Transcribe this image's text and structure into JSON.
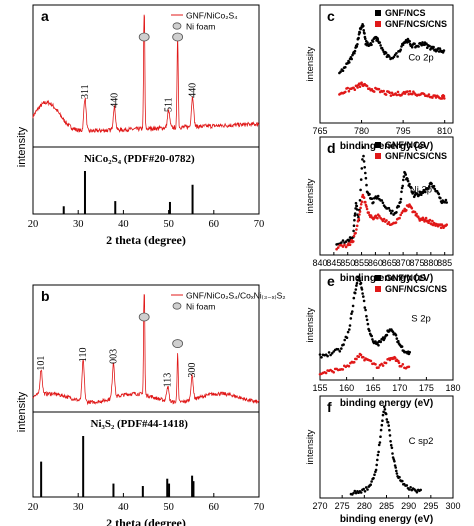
{
  "colors": {
    "red": "#e01818",
    "black": "#000000",
    "marker_fill": "#cfcfcf"
  },
  "chart_data": [
    {
      "id": "a",
      "panel_label": "a",
      "type": "line",
      "xlabel": "2 theta (degree)",
      "ylabel": "intensity",
      "xlim": [
        20,
        70
      ],
      "xticks": [
        20,
        30,
        40,
        50,
        60,
        70
      ],
      "legend": [
        {
          "name": "GNF/NiCo₂S₄",
          "kind": "line",
          "color": "#e01818"
        },
        {
          "name": "Ni foam",
          "kind": "marker",
          "color": "#cfcfcf"
        }
      ],
      "legend_position": "top-right",
      "peaks": [
        {
          "x": 31.5,
          "label": "311"
        },
        {
          "x": 38.0,
          "label": "440"
        },
        {
          "x": 44.6,
          "label": "",
          "ni_foam": true
        },
        {
          "x": 50.0,
          "label": "511"
        },
        {
          "x": 52.0,
          "label": "",
          "ni_foam": true
        },
        {
          "x": 55.3,
          "label": "440"
        }
      ],
      "reference": {
        "label": "NiCo₂S₄ (PDF#20-0782)",
        "sticks": [
          {
            "x": 26.8,
            "h": 0.18
          },
          {
            "x": 31.5,
            "h": 1.0
          },
          {
            "x": 38.2,
            "h": 0.3
          },
          {
            "x": 50.3,
            "h": 0.28
          },
          {
            "x": 55.3,
            "h": 0.68
          }
        ]
      }
    },
    {
      "id": "b",
      "panel_label": "b",
      "type": "line",
      "xlabel": "2 theta (degree)",
      "ylabel": "intensity",
      "xlim": [
        20,
        70
      ],
      "xticks": [
        20,
        30,
        40,
        50,
        60,
        70
      ],
      "legend": [
        {
          "name": "GNF/NiCo₂S₄/CoₓNi₍₃₋ₓ₎S₂",
          "kind": "line",
          "color": "#e01818"
        },
        {
          "name": "Ni foam",
          "kind": "marker",
          "color": "#cfcfcf"
        }
      ],
      "legend_position": "top-right",
      "peaks": [
        {
          "x": 21.8,
          "label": "101"
        },
        {
          "x": 31.1,
          "label": "110"
        },
        {
          "x": 37.8,
          "label": "003"
        },
        {
          "x": 44.6,
          "label": "",
          "ni_foam": true
        },
        {
          "x": 49.8,
          "label": "113"
        },
        {
          "x": 52.0,
          "label": "",
          "ni_foam": true
        },
        {
          "x": 55.2,
          "label": "300"
        }
      ],
      "reference": {
        "label": "Ni₃S₂ (PDF#44-1418)",
        "sticks": [
          {
            "x": 21.8,
            "h": 0.58
          },
          {
            "x": 31.1,
            "h": 1.0
          },
          {
            "x": 37.8,
            "h": 0.22
          },
          {
            "x": 44.3,
            "h": 0.18
          },
          {
            "x": 49.7,
            "h": 0.3
          },
          {
            "x": 50.1,
            "h": 0.22
          },
          {
            "x": 55.2,
            "h": 0.35
          },
          {
            "x": 55.5,
            "h": 0.26
          }
        ]
      }
    },
    {
      "id": "c",
      "panel_label": "c",
      "type": "scatter",
      "element_label": "Co 2p",
      "xlabel": "binding energy (eV)",
      "ylabel": "intensity",
      "xlim": [
        765,
        813
      ],
      "xticks": [
        765,
        780,
        795,
        810
      ],
      "legend": [
        {
          "name": "GNF/NCS",
          "color": "#000000"
        },
        {
          "name": "GNF/NCS/CNS",
          "color": "#e01818"
        }
      ],
      "series": [
        {
          "name": "GNF/NCS",
          "color": "#000000",
          "x": [
            772,
            775,
            777,
            778.5,
            779.5,
            780.5,
            781.5,
            783,
            785,
            786,
            788,
            790,
            793,
            795,
            796.5,
            798,
            800,
            802,
            804,
            806,
            808,
            810
          ],
          "y": [
            0.42,
            0.5,
            0.58,
            0.68,
            0.8,
            0.83,
            0.68,
            0.66,
            0.72,
            0.7,
            0.6,
            0.55,
            0.58,
            0.68,
            0.7,
            0.66,
            0.65,
            0.68,
            0.65,
            0.63,
            0.62,
            0.6
          ]
        },
        {
          "name": "GNF/NCS/CNS",
          "color": "#e01818",
          "x": [
            772,
            775,
            778,
            780,
            782,
            785,
            788,
            791,
            794,
            797,
            800,
            803,
            806,
            809,
            810
          ],
          "y": [
            0.25,
            0.28,
            0.3,
            0.33,
            0.3,
            0.28,
            0.26,
            0.24,
            0.25,
            0.26,
            0.25,
            0.24,
            0.23,
            0.22,
            0.22
          ]
        }
      ]
    },
    {
      "id": "d",
      "panel_label": "d",
      "type": "scatter",
      "element_label": "Ni 2p",
      "xlabel": "binding energy (eV)",
      "ylabel": "intensity",
      "xlim": [
        840,
        888
      ],
      "xticks": [
        840,
        845,
        850,
        855,
        860,
        865,
        870,
        875,
        880,
        885
      ],
      "legend": [
        {
          "name": "GNF/NCS",
          "color": "#000000"
        },
        {
          "name": "GNF/NCS/CNS",
          "color": "#e01818"
        }
      ],
      "series": [
        {
          "name": "GNF/NCS",
          "color": "#000000",
          "x": [
            846,
            850,
            852,
            853,
            854,
            855.5,
            857,
            859,
            861,
            864,
            867,
            869,
            870.5,
            872,
            874,
            876,
            878,
            880,
            882,
            884,
            886
          ],
          "y": [
            0.1,
            0.12,
            0.16,
            0.45,
            0.28,
            0.9,
            0.55,
            0.45,
            0.5,
            0.4,
            0.35,
            0.45,
            0.7,
            0.6,
            0.5,
            0.52,
            0.55,
            0.6,
            0.55,
            0.45,
            0.45
          ]
        },
        {
          "name": "GNF/NCS/CNS",
          "color": "#e01818",
          "x": [
            846,
            850,
            852,
            854,
            855.5,
            857,
            859,
            861,
            864,
            867,
            870,
            872,
            874,
            876,
            878,
            880,
            882,
            884,
            886
          ],
          "y": [
            0.06,
            0.08,
            0.12,
            0.3,
            0.52,
            0.38,
            0.3,
            0.33,
            0.28,
            0.26,
            0.36,
            0.42,
            0.36,
            0.3,
            0.3,
            0.28,
            0.26,
            0.24,
            0.24
          ]
        }
      ]
    },
    {
      "id": "e",
      "panel_label": "e",
      "type": "scatter",
      "element_label": "S 2p",
      "xlabel": "binding energy (eV)",
      "ylabel": "intensity",
      "xlim": [
        155,
        180
      ],
      "xticks": [
        155,
        160,
        165,
        170,
        175,
        180
      ],
      "legend": [
        {
          "name": "GNF/NCS",
          "color": "#000000"
        },
        {
          "name": "GNF/NCS/CNS",
          "color": "#e01818"
        }
      ],
      "series": [
        {
          "name": "GNF/NCS",
          "color": "#000000",
          "x": [
            155,
            157,
            159,
            160.5,
            161.5,
            162.3,
            163,
            164,
            165,
            166,
            167,
            168,
            169,
            170,
            171,
            172
          ],
          "y": [
            0.22,
            0.24,
            0.28,
            0.45,
            0.78,
            0.95,
            0.8,
            0.5,
            0.34,
            0.33,
            0.38,
            0.46,
            0.42,
            0.32,
            0.26,
            0.24
          ]
        },
        {
          "name": "GNF/NCS/CNS",
          "color": "#e01818",
          "x": [
            155,
            157,
            159,
            161,
            162.5,
            164,
            166,
            168,
            169,
            170,
            172
          ],
          "y": [
            0.06,
            0.08,
            0.1,
            0.15,
            0.22,
            0.18,
            0.12,
            0.18,
            0.2,
            0.14,
            0.1
          ]
        }
      ]
    },
    {
      "id": "f",
      "panel_label": "f",
      "type": "scatter",
      "element_label": "C sp2",
      "xlabel": "binding energy (eV)",
      "ylabel": "intensity",
      "xlim": [
        270,
        300
      ],
      "xticks": [
        270,
        275,
        280,
        285,
        290,
        295,
        300
      ],
      "series": [
        {
          "name": "",
          "color": "#000000",
          "x": [
            277,
            279,
            281,
            282.5,
            283.5,
            284.5,
            285.5,
            286.5,
            287.5,
            289,
            291,
            293
          ],
          "y": [
            0.05,
            0.06,
            0.1,
            0.25,
            0.55,
            0.9,
            0.7,
            0.4,
            0.22,
            0.12,
            0.08,
            0.06
          ]
        }
      ]
    }
  ]
}
